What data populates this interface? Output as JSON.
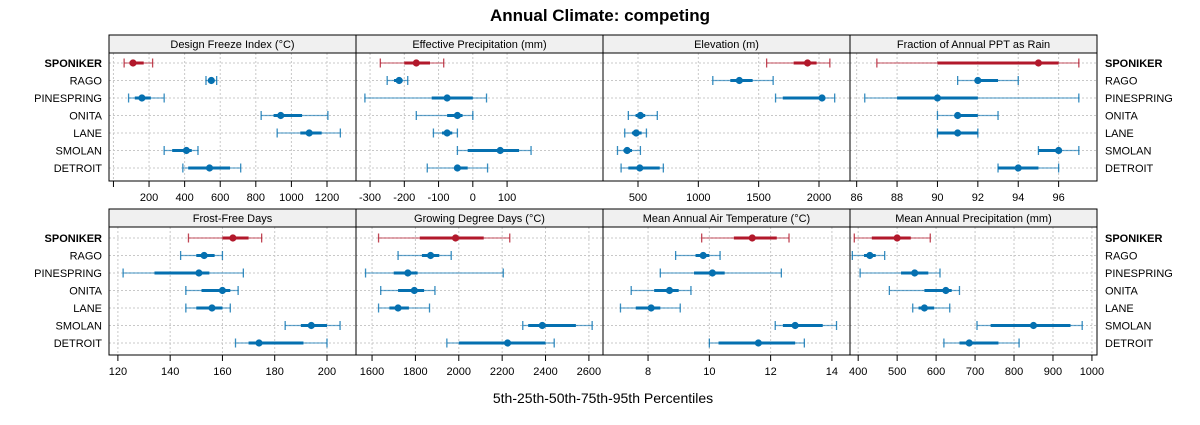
{
  "chart_data": {
    "type": "dotplot-percentile",
    "title": "Annual Climate: competing",
    "xlabel": "5th-25th-50th-75th-95th Percentiles",
    "ylabel": "",
    "grid": true,
    "highlight_color": "#b2182b",
    "series_color": "#0570b0",
    "rows": [
      "SPONIKER",
      "RAGO",
      "PINESPRING",
      "ONITA",
      "LANE",
      "SMOLAN",
      "DETROIT"
    ],
    "highlight_row": "SPONIKER",
    "percentile_order": [
      "p5",
      "p25",
      "p50",
      "p75",
      "p95"
    ],
    "panels": [
      {
        "title": "Design Freeze Index (°C)",
        "xlim": [
          -25,
          1363
        ],
        "ticks": [
          0,
          200,
          400,
          600,
          800,
          1000,
          1200
        ],
        "tick_labels": [
          "",
          "200",
          "400",
          "600",
          "800",
          "1000",
          "1200"
        ],
        "values": [
          [
            60,
            90,
            110,
            170,
            220
          ],
          [
            520,
            540,
            550,
            565,
            580
          ],
          [
            85,
            120,
            160,
            210,
            285
          ],
          [
            830,
            900,
            940,
            1060,
            1205
          ],
          [
            920,
            1050,
            1100,
            1170,
            1275
          ],
          [
            285,
            330,
            410,
            440,
            475
          ],
          [
            390,
            420,
            540,
            655,
            715
          ]
        ]
      },
      {
        "title": "Effective Precipitation (mm)",
        "xlim": [
          -341,
          380
        ],
        "ticks": [
          -300,
          -200,
          -100,
          0,
          100
        ],
        "tick_labels": [
          "-300",
          "-200",
          "-100",
          "0",
          "100"
        ],
        "values": [
          [
            -270,
            -200,
            -165,
            -125,
            -85
          ],
          [
            -250,
            -230,
            -215,
            -205,
            -190
          ],
          [
            -315,
            -120,
            -75,
            0,
            40
          ],
          [
            -165,
            -75,
            -45,
            -30,
            0
          ],
          [
            -115,
            -90,
            -75,
            -60,
            -45
          ],
          [
            -45,
            -15,
            80,
            135,
            170
          ],
          [
            -133,
            -50,
            -45,
            -15,
            43
          ]
        ]
      },
      {
        "title": "Elevation (m)",
        "xlim": [
          210,
          2257
        ],
        "ticks": [
          500,
          1000,
          1500,
          2000
        ],
        "tick_labels": [
          "500",
          "1000",
          "1500",
          "2000"
        ],
        "values": [
          [
            1566,
            1790,
            1905,
            1980,
            2090
          ],
          [
            1120,
            1265,
            1340,
            1450,
            1620
          ],
          [
            1640,
            1700,
            2025,
            2050,
            2130
          ],
          [
            420,
            480,
            520,
            560,
            660
          ],
          [
            390,
            450,
            485,
            530,
            570
          ],
          [
            330,
            380,
            410,
            450,
            520
          ],
          [
            360,
            420,
            515,
            680,
            710
          ]
        ]
      },
      {
        "title": "Fraction of Annual PPT as Rain",
        "xlim": [
          85.67,
          97.9
        ],
        "ticks": [
          86,
          88,
          90,
          92,
          94,
          96
        ],
        "tick_labels": [
          "86",
          "88",
          "90",
          "92",
          "94",
          "96"
        ],
        "values": [
          [
            87,
            90,
            95,
            96,
            97
          ],
          [
            91,
            92,
            92,
            93,
            94
          ],
          [
            86.4,
            88,
            90,
            92,
            97
          ],
          [
            90,
            91,
            91,
            92,
            93
          ],
          [
            90,
            90,
            91,
            92,
            92
          ],
          [
            95,
            95,
            96,
            96,
            97
          ],
          [
            93,
            93,
            94,
            95,
            96
          ]
        ]
      },
      {
        "title": "Frost-Free Days",
        "xlim": [
          116.6,
          211.1
        ],
        "ticks": [
          120,
          140,
          160,
          180,
          200
        ],
        "tick_labels": [
          "120",
          "140",
          "160",
          "180",
          "200"
        ],
        "values": [
          [
            147,
            160,
            164,
            170,
            175
          ],
          [
            144,
            150,
            153,
            157,
            160
          ],
          [
            122,
            134,
            151,
            155,
            168
          ],
          [
            146,
            152,
            160,
            163,
            166
          ],
          [
            146,
            150,
            156,
            160,
            163
          ],
          [
            184,
            190,
            194,
            200,
            205
          ],
          [
            165,
            170,
            174,
            191,
            200
          ]
        ]
      },
      {
        "title": "Growing Degree Days (°C)",
        "xlim": [
          1526,
          2665
        ],
        "ticks": [
          1600,
          1800,
          2000,
          2200,
          2400,
          2600
        ],
        "tick_labels": [
          "1600",
          "1800",
          "2000",
          "2200",
          "2400",
          "2600"
        ],
        "values": [
          [
            1630,
            1820,
            1985,
            2115,
            2235
          ],
          [
            1720,
            1830,
            1870,
            1910,
            1965
          ],
          [
            1570,
            1700,
            1765,
            1810,
            2205
          ],
          [
            1640,
            1720,
            1795,
            1840,
            1890
          ],
          [
            1630,
            1680,
            1720,
            1770,
            1865
          ],
          [
            2295,
            2320,
            2385,
            2540,
            2615
          ],
          [
            1945,
            2000,
            2225,
            2400,
            2440
          ]
        ]
      },
      {
        "title": "Mean Annual Air Temperature (°C)",
        "xlim": [
          6.53,
          14.59
        ],
        "ticks": [
          8,
          10,
          12,
          14
        ],
        "tick_labels": [
          "8",
          "10",
          "12",
          "14"
        ],
        "values": [
          [
            9.75,
            10.8,
            11.4,
            12.2,
            12.6
          ],
          [
            8.9,
            9.55,
            9.8,
            10.0,
            10.35
          ],
          [
            8.4,
            9.5,
            10.1,
            10.5,
            12.35
          ],
          [
            7.45,
            8.2,
            8.7,
            9.0,
            9.4
          ],
          [
            7.1,
            7.6,
            8.1,
            8.4,
            9.05
          ],
          [
            12.15,
            12.4,
            12.8,
            13.7,
            14.15
          ],
          [
            10.0,
            10.3,
            11.6,
            12.8,
            13.1
          ]
        ]
      },
      {
        "title": "Mean Annual Precipitation (mm)",
        "xlim": [
          379,
          1013
        ],
        "ticks": [
          400,
          500,
          600,
          700,
          800,
          900,
          1000
        ],
        "tick_labels": [
          "400",
          "500",
          "600",
          "700",
          "800",
          "900",
          "1000"
        ],
        "values": [
          [
            390,
            435,
            500,
            535,
            585
          ],
          [
            385,
            415,
            430,
            445,
            468
          ],
          [
            405,
            510,
            545,
            580,
            610
          ],
          [
            480,
            570,
            625,
            640,
            660
          ],
          [
            540,
            555,
            570,
            595,
            635
          ],
          [
            705,
            740,
            850,
            945,
            975
          ],
          [
            620,
            660,
            685,
            760,
            813
          ]
        ]
      }
    ]
  }
}
